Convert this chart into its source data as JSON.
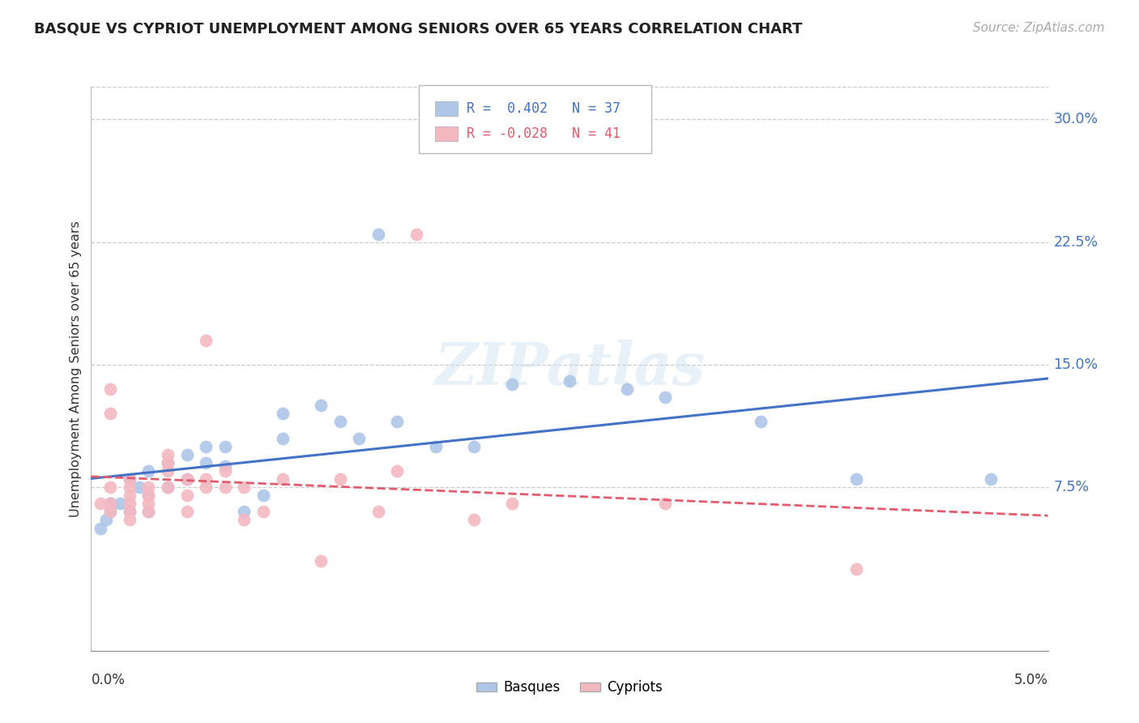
{
  "title": "BASQUE VS CYPRIOT UNEMPLOYMENT AMONG SENIORS OVER 65 YEARS CORRELATION CHART",
  "source": "Source: ZipAtlas.com",
  "ylabel": "Unemployment Among Seniors over 65 years",
  "xlim": [
    0.0,
    0.05
  ],
  "ylim": [
    -0.025,
    0.32
  ],
  "yticks": [
    0.075,
    0.15,
    0.225,
    0.3
  ],
  "ytick_labels": [
    "7.5%",
    "15.0%",
    "22.5%",
    "30.0%"
  ],
  "background_color": "#ffffff",
  "grid_color": "#cccccc",
  "basque_color": "#aec6e8",
  "cypriot_color": "#f4b8c1",
  "basque_line_color": "#4472c4",
  "cypriot_line_color": "#e05c6e",
  "legend_R_basque": "R =  0.402",
  "legend_N_basque": "N = 37",
  "legend_R_cypriot": "R = -0.028",
  "legend_N_cypriot": "N = 41",
  "basque_x": [
    0.0005,
    0.0008,
    0.001,
    0.001,
    0.0015,
    0.002,
    0.002,
    0.0025,
    0.003,
    0.003,
    0.003,
    0.004,
    0.004,
    0.005,
    0.005,
    0.006,
    0.006,
    0.007,
    0.007,
    0.008,
    0.009,
    0.01,
    0.01,
    0.012,
    0.013,
    0.014,
    0.015,
    0.016,
    0.018,
    0.02,
    0.022,
    0.025,
    0.028,
    0.03,
    0.035,
    0.04,
    0.047
  ],
  "basque_y": [
    0.05,
    0.055,
    0.06,
    0.065,
    0.065,
    0.06,
    0.08,
    0.075,
    0.07,
    0.06,
    0.085,
    0.075,
    0.09,
    0.08,
    0.095,
    0.09,
    0.1,
    0.088,
    0.1,
    0.06,
    0.07,
    0.105,
    0.12,
    0.125,
    0.115,
    0.105,
    0.23,
    0.115,
    0.1,
    0.1,
    0.138,
    0.14,
    0.135,
    0.13,
    0.115,
    0.08,
    0.08
  ],
  "cypriot_x": [
    0.0005,
    0.001,
    0.001,
    0.001,
    0.001,
    0.001,
    0.002,
    0.002,
    0.002,
    0.002,
    0.002,
    0.002,
    0.003,
    0.003,
    0.003,
    0.003,
    0.004,
    0.004,
    0.004,
    0.004,
    0.005,
    0.005,
    0.005,
    0.006,
    0.006,
    0.006,
    0.007,
    0.007,
    0.008,
    0.008,
    0.009,
    0.01,
    0.012,
    0.013,
    0.015,
    0.016,
    0.017,
    0.02,
    0.022,
    0.03,
    0.04
  ],
  "cypriot_y": [
    0.065,
    0.06,
    0.065,
    0.075,
    0.12,
    0.135,
    0.055,
    0.06,
    0.065,
    0.07,
    0.075,
    0.08,
    0.06,
    0.065,
    0.07,
    0.075,
    0.075,
    0.085,
    0.09,
    0.095,
    0.06,
    0.07,
    0.08,
    0.075,
    0.08,
    0.165,
    0.075,
    0.085,
    0.055,
    0.075,
    0.06,
    0.08,
    0.03,
    0.08,
    0.06,
    0.085,
    0.23,
    0.055,
    0.065,
    0.065,
    0.025
  ]
}
